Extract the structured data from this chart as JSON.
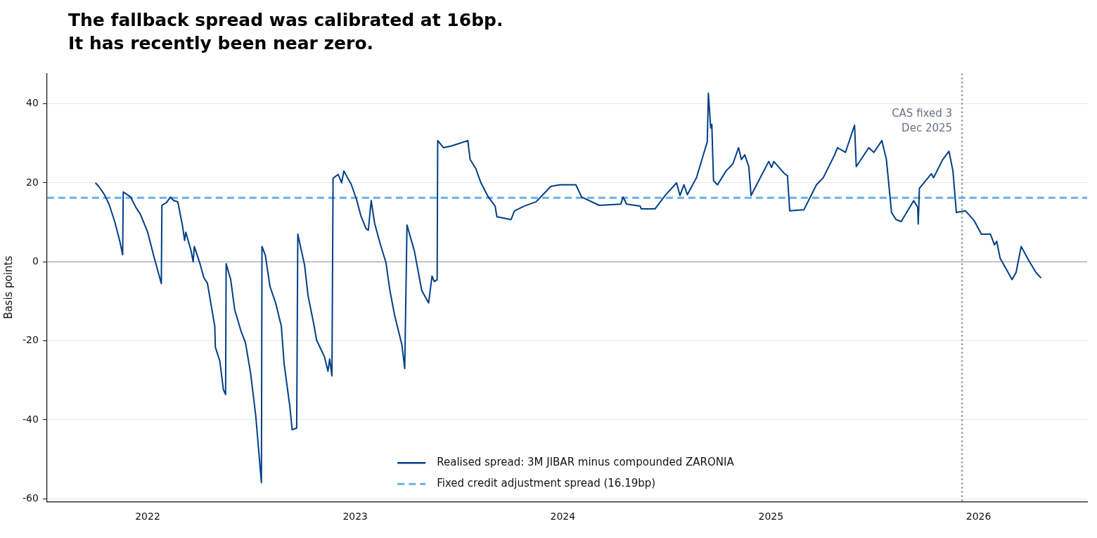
{
  "chart_data": {
    "type": "line",
    "title": "The fallback spread was calibrated at 16bp.\nIt has recently been near zero.",
    "ylabel": "Basis points",
    "xlim": [
      "2021-07-08",
      "2026-07-11"
    ],
    "xticks": [
      {
        "value": "2022-01-01",
        "label": "2022"
      },
      {
        "value": "2023-01-01",
        "label": "2023"
      },
      {
        "value": "2024-01-01",
        "label": "2024"
      },
      {
        "value": "2025-01-01",
        "label": "2025"
      },
      {
        "value": "2026-01-01",
        "label": "2026"
      }
    ],
    "ylim": [
      -60.7,
      47.7
    ],
    "yticks": [
      -60,
      -40,
      -20,
      0,
      20,
      40
    ],
    "grid": "y",
    "legend": "bottom",
    "marker": "none",
    "ref_lines": [
      {
        "axis": "y",
        "value": 0,
        "color": "#9ca3af",
        "line_style": "solid"
      },
      {
        "axis": "x",
        "value": "2025-12-03",
        "label": "CAS fixed 3 Dec 2025",
        "color": "#6b7280",
        "line_style": "dotted"
      }
    ],
    "series": [
      {
        "name": "Realised spread: 3M JIBAR minus compounded ZARONIA",
        "color": "#003f87",
        "line_style": "solid",
        "x": [
          "2021-10-01",
          "2021-10-07",
          "2021-10-17",
          "2021-10-25",
          "2021-11-04",
          "2021-11-13",
          "2021-11-18",
          "2021-11-19",
          "2021-12-02",
          "2021-12-12",
          "2021-12-19",
          "2022-01-01",
          "2022-01-12",
          "2022-01-25",
          "2022-01-26",
          "2022-02-03",
          "2022-02-10",
          "2022-02-16",
          "2022-02-23",
          "2022-03-03",
          "2022-03-07",
          "2022-03-09",
          "2022-03-18",
          "2022-03-22",
          "2022-03-24",
          "2022-04-03",
          "2022-04-10",
          "2022-04-16",
          "2022-04-29",
          "2022-04-30",
          "2022-05-08",
          "2022-05-14",
          "2022-05-18",
          "2022-05-19",
          "2022-05-27",
          "2022-06-03",
          "2022-06-14",
          "2022-06-22",
          "2022-07-01",
          "2022-07-10",
          "2022-07-20",
          "2022-07-21",
          "2022-07-27",
          "2022-08-04",
          "2022-08-14",
          "2022-08-24",
          "2022-08-29",
          "2022-09-08",
          "2022-09-12",
          "2022-09-20",
          "2022-09-22",
          "2022-10-04",
          "2022-10-10",
          "2022-10-20",
          "2022-10-25",
          "2022-11-08",
          "2022-11-14",
          "2022-11-17",
          "2022-11-21",
          "2022-11-23",
          "2022-12-02",
          "2022-12-08",
          "2022-12-12",
          "2022-12-25",
          "2023-01-03",
          "2023-01-11",
          "2023-01-20",
          "2023-01-24",
          "2023-01-29",
          "2023-02-04",
          "2023-02-14",
          "2023-02-24",
          "2023-03-03",
          "2023-03-11",
          "2023-03-24",
          "2023-03-29",
          "2023-04-02",
          "2023-04-15",
          "2023-04-28",
          "2023-05-10",
          "2023-05-16",
          "2023-05-20",
          "2023-05-25",
          "2023-05-26",
          "2023-06-05",
          "2023-06-18",
          "2023-06-29",
          "2023-07-18",
          "2023-07-22",
          "2023-08-01",
          "2023-08-10",
          "2023-08-23",
          "2023-09-04",
          "2023-09-07",
          "2023-10-02",
          "2023-10-08",
          "2023-10-25",
          "2023-11-15",
          "2023-12-11",
          "2023-12-27",
          "2024-01-24",
          "2024-02-03",
          "2024-03-05",
          "2024-04-12",
          "2024-04-16",
          "2024-04-22",
          "2024-05-16",
          "2024-05-18",
          "2024-06-11",
          "2024-06-30",
          "2024-07-19",
          "2024-07-25",
          "2024-08-01",
          "2024-08-07",
          "2024-08-23",
          "2024-09-11",
          "2024-09-13",
          "2024-09-17",
          "2024-09-19",
          "2024-09-22",
          "2024-09-29",
          "2024-10-14",
          "2024-10-26",
          "2024-11-05",
          "2024-11-10",
          "2024-11-16",
          "2024-11-23",
          "2024-11-27",
          "2024-12-28",
          "2025-01-02",
          "2025-01-06",
          "2025-01-25",
          "2025-01-30",
          "2025-02-03",
          "2025-02-28",
          "2025-03-22",
          "2025-04-03",
          "2025-04-23",
          "2025-04-28",
          "2025-05-12",
          "2025-05-28",
          "2025-05-31",
          "2025-06-22",
          "2025-07-01",
          "2025-07-15",
          "2025-07-23",
          "2025-08-01",
          "2025-08-09",
          "2025-08-18",
          "2025-09-09",
          "2025-09-16",
          "2025-09-17",
          "2025-09-19",
          "2025-10-10",
          "2025-10-14",
          "2025-10-30",
          "2025-11-10",
          "2025-11-17",
          "2025-11-23",
          "2025-12-09",
          "2025-12-24",
          "2026-01-06",
          "2026-01-22",
          "2026-01-29",
          "2026-02-02",
          "2026-02-08",
          "2026-03-01",
          "2026-03-08",
          "2026-03-17",
          "2026-03-30",
          "2026-04-12",
          "2026-04-21"
        ],
        "values": [
          20.0,
          19.1,
          17.0,
          14.6,
          10.2,
          5.2,
          1.8,
          17.7,
          16.4,
          13.6,
          12.1,
          7.5,
          1.3,
          -5.5,
          14.3,
          15.0,
          16.4,
          15.5,
          15.2,
          9.3,
          5.4,
          7.5,
          3.0,
          0.0,
          3.9,
          -0.5,
          -4.1,
          -5.4,
          -16.3,
          -21.6,
          -25.2,
          -32.3,
          -33.6,
          -0.5,
          -4.5,
          -12.1,
          -17.5,
          -20.5,
          -28.2,
          -38.9,
          -55.9,
          3.9,
          1.6,
          -6.2,
          -10.4,
          -16.3,
          -25.9,
          -36.6,
          -42.5,
          -42.1,
          7.0,
          -0.9,
          -8.6,
          -15.7,
          -19.8,
          -24.1,
          -27.7,
          -24.6,
          -28.9,
          21.2,
          22.1,
          20.0,
          23.0,
          19.6,
          15.9,
          11.6,
          8.4,
          8.0,
          15.5,
          9.8,
          4.5,
          -0.2,
          -7.3,
          -13.4,
          -21.0,
          -27.0,
          9.3,
          2.7,
          -7.3,
          -10.4,
          -3.6,
          -5.0,
          -4.5,
          30.7,
          28.9,
          29.3,
          29.8,
          30.7,
          25.9,
          23.6,
          20.0,
          16.4,
          14.1,
          11.4,
          10.7,
          12.9,
          14.1,
          15.2,
          19.1,
          19.5,
          19.5,
          16.4,
          14.3,
          14.6,
          16.4,
          14.6,
          14.1,
          13.4,
          13.4,
          17.0,
          20.0,
          16.8,
          19.5,
          17.0,
          21.3,
          30.4,
          42.7,
          33.9,
          34.8,
          20.5,
          19.5,
          23.0,
          24.8,
          28.9,
          25.9,
          27.1,
          24.1,
          16.8,
          25.4,
          23.9,
          25.4,
          22.3,
          21.8,
          12.9,
          13.2,
          19.5,
          21.3,
          27.1,
          28.9,
          27.7,
          34.6,
          24.1,
          28.9,
          27.7,
          30.7,
          25.9,
          12.5,
          10.7,
          10.2,
          15.5,
          13.8,
          9.6,
          18.6,
          22.3,
          21.3,
          25.9,
          28.0,
          23.0,
          12.5,
          12.9,
          10.5,
          7.0,
          7.0,
          4.3,
          5.2,
          0.9,
          -4.5,
          -2.7,
          3.9,
          0.4,
          -2.7,
          -4.1
        ]
      },
      {
        "name": "Fixed credit adjustment spread (16.19bp)",
        "color": "#6cb0e8",
        "line_style": "dashed",
        "x": [
          "2021-07-08",
          "2026-07-11"
        ],
        "values": [
          16.19,
          16.19
        ]
      }
    ]
  }
}
